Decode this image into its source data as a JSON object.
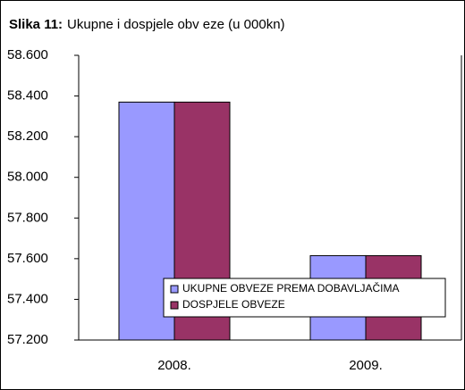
{
  "chart_data": {
    "type": "bar",
    "title_label": "Slika 11:",
    "title": "Ukupne i dospjele obv eze (u 000kn)",
    "categories": [
      "2008.",
      "2009."
    ],
    "series": [
      {
        "name": "UKUPNE OBVEZE PREMA DOBAVLJAČIMA",
        "color": "#9999ff",
        "values": [
          58370,
          57615
        ]
      },
      {
        "name": "DOSPJELE OBVEZE",
        "color": "#993366",
        "values": [
          58370,
          57615
        ]
      }
    ],
    "ylim": [
      57200,
      58600
    ],
    "yticks": [
      {
        "value": 57200,
        "label": "57.200"
      },
      {
        "value": 57400,
        "label": "57.400"
      },
      {
        "value": 57600,
        "label": "57.600"
      },
      {
        "value": 57800,
        "label": "57.800"
      },
      {
        "value": 58000,
        "label": "58.000"
      },
      {
        "value": 58200,
        "label": "58.200"
      },
      {
        "value": 58400,
        "label": "58.400"
      },
      {
        "value": 58600,
        "label": "58.600"
      }
    ],
    "legend": "inside-bottom-right"
  }
}
